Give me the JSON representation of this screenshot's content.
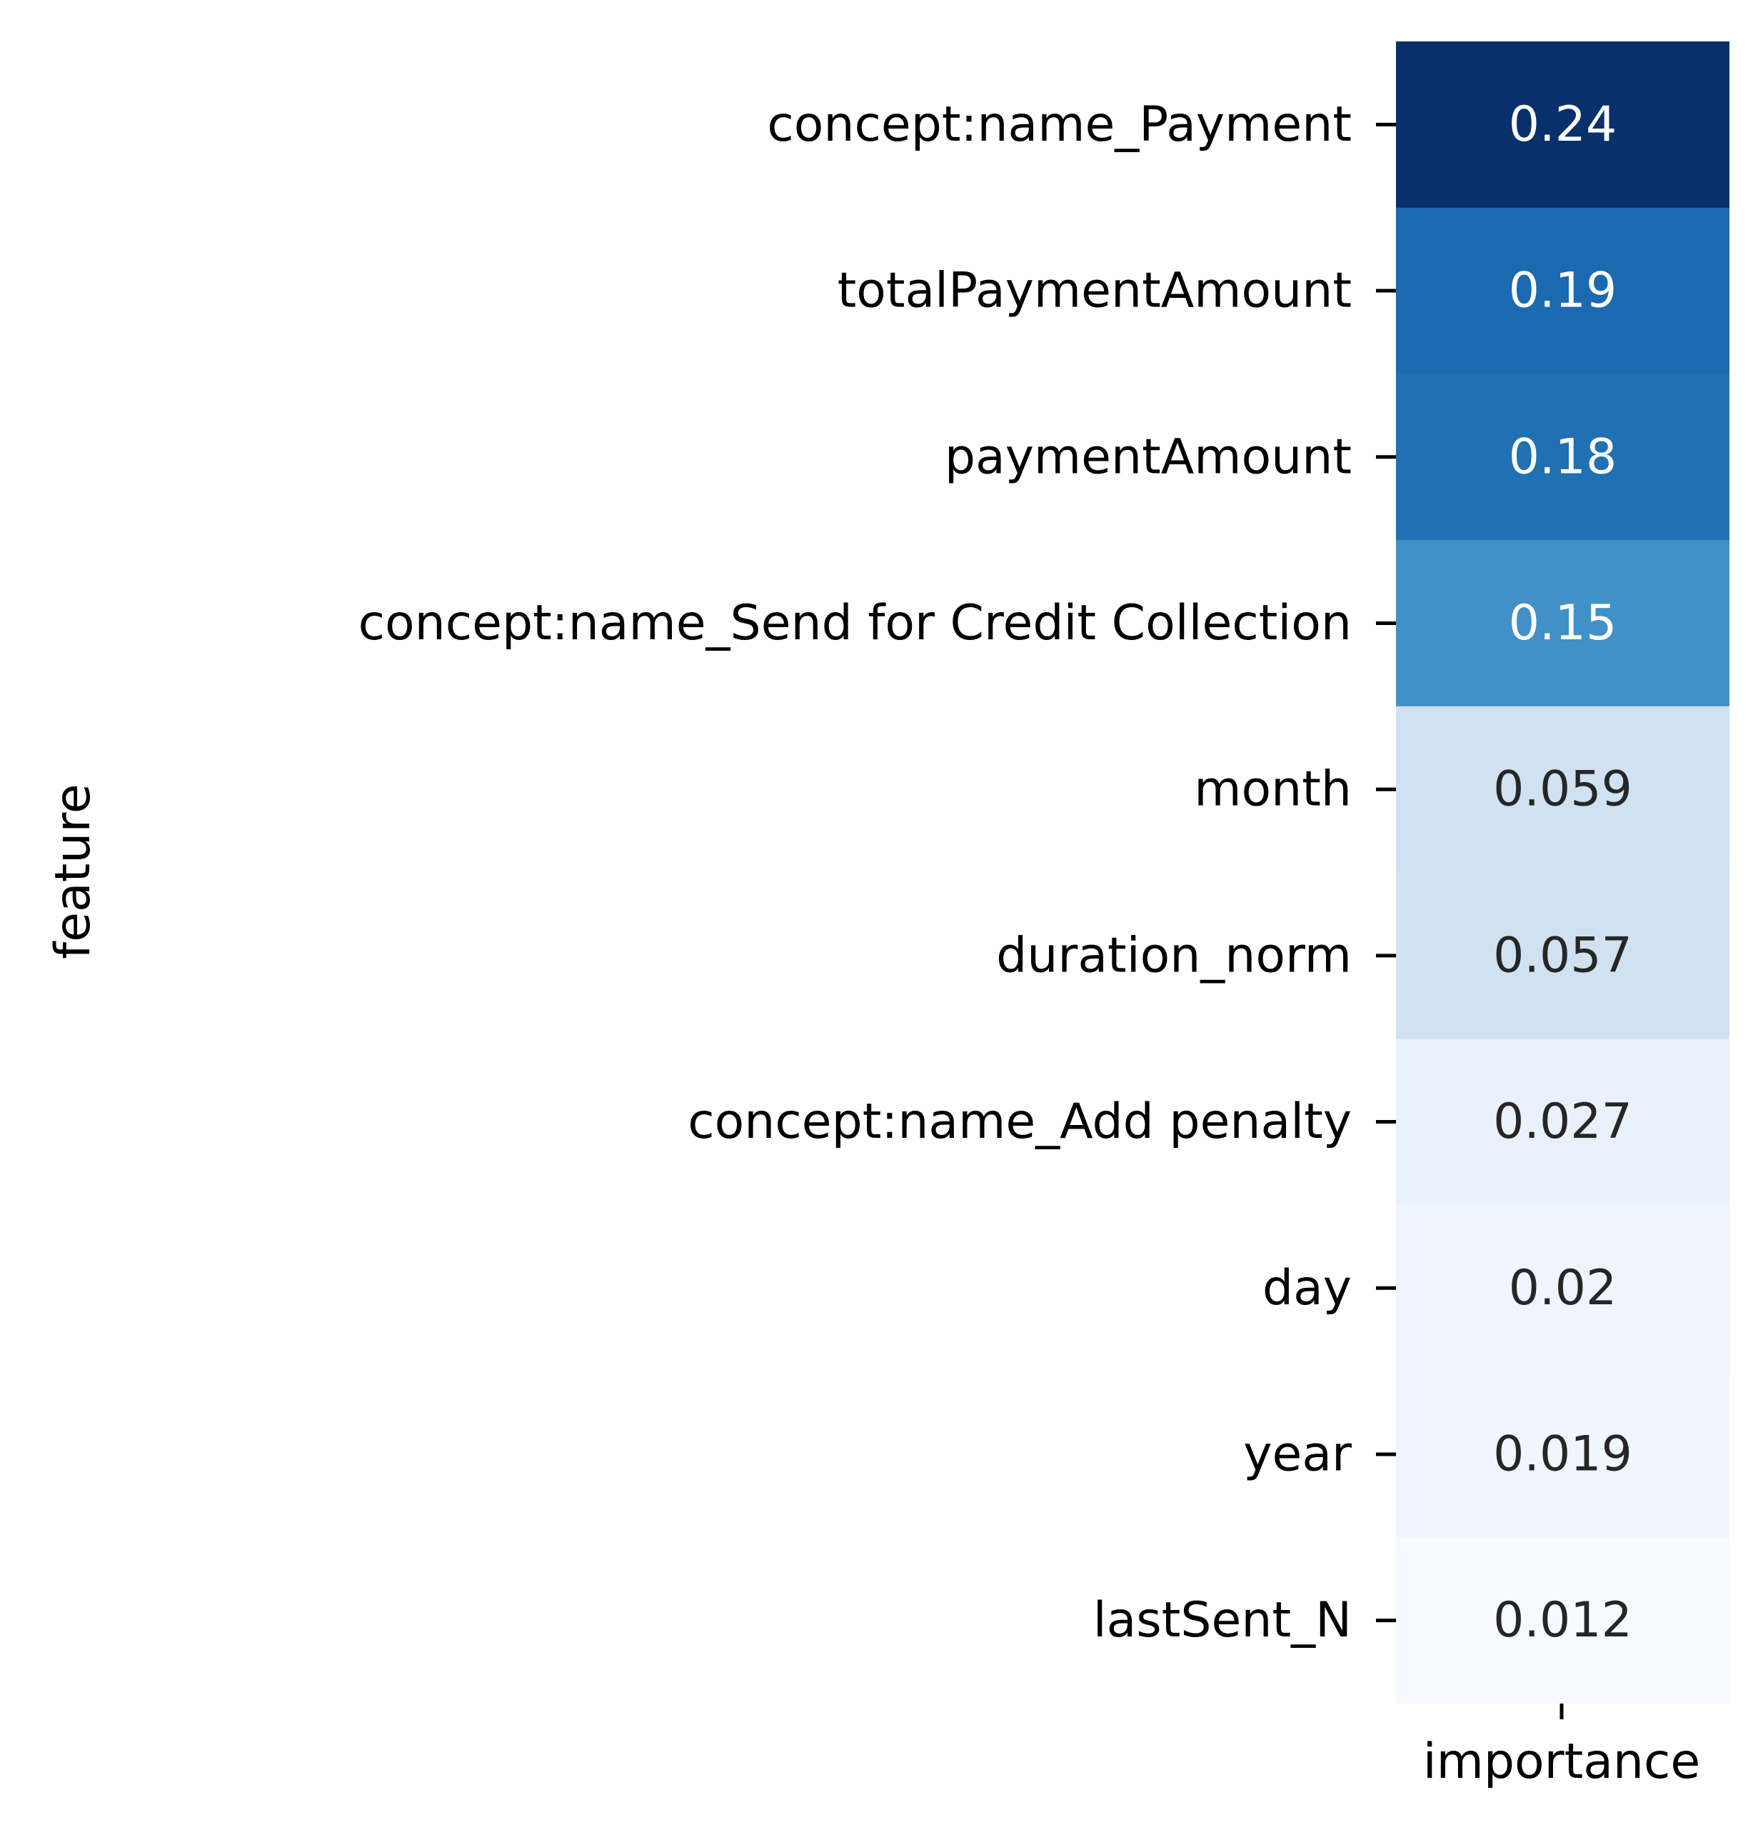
{
  "chart_data": {
    "type": "heatmap",
    "title": "",
    "xlabel": "",
    "ylabel": "feature",
    "column": "importance",
    "colormap": "Blues",
    "grid": false,
    "colorbar": false,
    "rows": [
      {
        "feature": "concept:name_Payment",
        "value": 0.24,
        "label": "0.24",
        "color": "#08306b",
        "text_color": "#ffffff"
      },
      {
        "feature": "totalPaymentAmount",
        "value": 0.19,
        "label": "0.19",
        "color": "#1b69af",
        "text_color": "#ffffff"
      },
      {
        "feature": "paymentAmount",
        "value": 0.18,
        "label": "0.18",
        "color": "#2070b4",
        "text_color": "#ffffff"
      },
      {
        "feature": "concept:name_Send for Credit Collection",
        "value": 0.15,
        "label": "0.15",
        "color": "#4191c6",
        "text_color": "#ffffff"
      },
      {
        "feature": "month",
        "value": 0.059,
        "label": "0.059",
        "color": "#cfe1f2",
        "text_color": "#262626"
      },
      {
        "feature": "duration_norm",
        "value": 0.057,
        "label": "0.057",
        "color": "#d0e1f2",
        "text_color": "#262626"
      },
      {
        "feature": "concept:name_Add penalty",
        "value": 0.027,
        "label": "0.027",
        "color": "#e9f2fa",
        "text_color": "#262626"
      },
      {
        "feature": "day",
        "value": 0.02,
        "label": "0.02",
        "color": "#eef5fc",
        "text_color": "#262626"
      },
      {
        "feature": "year",
        "value": 0.019,
        "label": "0.019",
        "color": "#f0f6fd",
        "text_color": "#262626"
      },
      {
        "feature": "lastSent_N",
        "value": 0.012,
        "label": "0.012",
        "color": "#f7fbff",
        "text_color": "#262626"
      }
    ]
  }
}
